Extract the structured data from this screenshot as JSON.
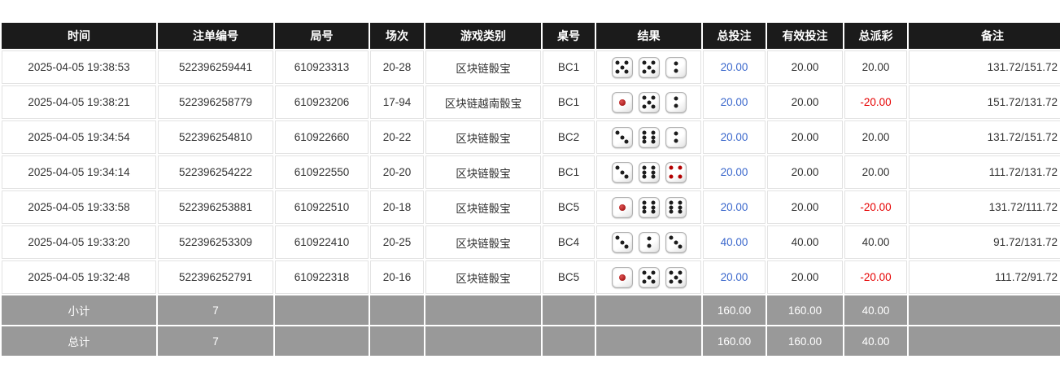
{
  "table": {
    "columns": [
      "时间",
      "注单编号",
      "局号",
      "场次",
      "游戏类别",
      "桌号",
      "结果",
      "总投注",
      "有效投注",
      "总派彩",
      "备注"
    ],
    "rows": [
      {
        "time": "2025-04-05 19:38:53",
        "bet_id": "522396259441",
        "round_no": "610923313",
        "session": "20-28",
        "game_type": "区块链骰宝",
        "table_no": "BC1",
        "dice": [
          5,
          5,
          2
        ],
        "total_bet": "20.00",
        "valid_bet": "20.00",
        "payout": "20.00",
        "payout_negative": false,
        "remark": "131.72/151.72"
      },
      {
        "time": "2025-04-05 19:38:21",
        "bet_id": "522396258779",
        "round_no": "610923206",
        "session": "17-94",
        "game_type": "区块链越南骰宝",
        "table_no": "BC1",
        "dice": [
          1,
          5,
          2
        ],
        "total_bet": "20.00",
        "valid_bet": "20.00",
        "payout": "-20.00",
        "payout_negative": true,
        "remark": "151.72/131.72"
      },
      {
        "time": "2025-04-05 19:34:54",
        "bet_id": "522396254810",
        "round_no": "610922660",
        "session": "20-22",
        "game_type": "区块链骰宝",
        "table_no": "BC2",
        "dice": [
          3,
          6,
          2
        ],
        "total_bet": "20.00",
        "valid_bet": "20.00",
        "payout": "20.00",
        "payout_negative": false,
        "remark": "131.72/151.72"
      },
      {
        "time": "2025-04-05 19:34:14",
        "bet_id": "522396254222",
        "round_no": "610922550",
        "session": "20-20",
        "game_type": "区块链骰宝",
        "table_no": "BC1",
        "dice": [
          3,
          6,
          4
        ],
        "total_bet": "20.00",
        "valid_bet": "20.00",
        "payout": "20.00",
        "payout_negative": false,
        "remark": "111.72/131.72"
      },
      {
        "time": "2025-04-05 19:33:58",
        "bet_id": "522396253881",
        "round_no": "610922510",
        "session": "20-18",
        "game_type": "区块链骰宝",
        "table_no": "BC5",
        "dice": [
          1,
          6,
          6
        ],
        "total_bet": "20.00",
        "valid_bet": "20.00",
        "payout": "-20.00",
        "payout_negative": true,
        "remark": "131.72/111.72"
      },
      {
        "time": "2025-04-05 19:33:20",
        "bet_id": "522396253309",
        "round_no": "610922410",
        "session": "20-25",
        "game_type": "区块链骰宝",
        "table_no": "BC4",
        "dice": [
          3,
          2,
          3
        ],
        "total_bet": "40.00",
        "valid_bet": "40.00",
        "payout": "40.00",
        "payout_negative": false,
        "remark": "91.72/131.72"
      },
      {
        "time": "2025-04-05 19:32:48",
        "bet_id": "522396252791",
        "round_no": "610922318",
        "session": "20-16",
        "game_type": "区块链骰宝",
        "table_no": "BC5",
        "dice": [
          1,
          5,
          5
        ],
        "total_bet": "20.00",
        "valid_bet": "20.00",
        "payout": "-20.00",
        "payout_negative": true,
        "remark": "111.72/91.72"
      }
    ],
    "footer_rows": [
      {
        "label": "小计",
        "count": "7",
        "total_bet": "160.00",
        "valid_bet": "160.00",
        "payout": "40.00"
      },
      {
        "label": "总计",
        "count": "7",
        "total_bet": "160.00",
        "valid_bet": "160.00",
        "payout": "40.00"
      }
    ],
    "colors": {
      "header_bg": "#1b1b1b",
      "footer_bg": "#999999",
      "total_bet_blue": "#3a67cc",
      "negative_red": "#e60000",
      "die_pip_black": "#1c1c1c",
      "die_pip_red": "#b30000"
    }
  }
}
